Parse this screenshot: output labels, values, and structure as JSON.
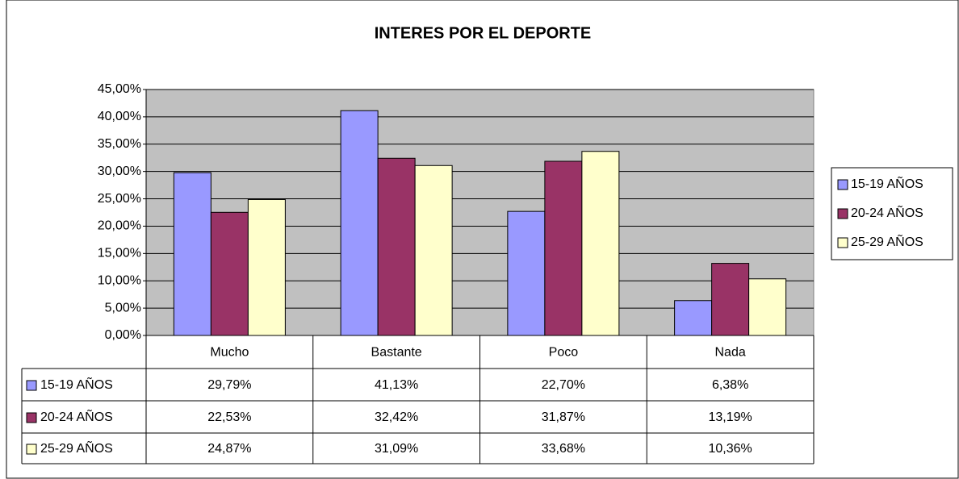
{
  "chart_data": {
    "type": "bar",
    "title": "INTERES POR EL DEPORTE",
    "categories": [
      "Mucho",
      "Bastante",
      "Poco",
      "Nada"
    ],
    "series": [
      {
        "name": "15-19 AÑOS",
        "color": "#9999ff",
        "values": [
          29.79,
          41.13,
          22.7,
          6.38
        ],
        "value_labels": [
          "29,79%",
          "41,13%",
          "22,70%",
          "6,38%"
        ]
      },
      {
        "name": "20-24 AÑOS",
        "color": "#993366",
        "values": [
          22.53,
          32.42,
          31.87,
          13.19
        ],
        "value_labels": [
          "22,53%",
          "32,42%",
          "31,87%",
          "13,19%"
        ]
      },
      {
        "name": "25-29 AÑOS",
        "color": "#ffffcc",
        "values": [
          24.87,
          31.09,
          33.68,
          10.36
        ],
        "value_labels": [
          "24,87%",
          "31,09%",
          "33,68%",
          "10,36%"
        ]
      }
    ],
    "ylim": [
      0,
      45
    ],
    "yticks": [
      {
        "value": 0,
        "label": "0,00%"
      },
      {
        "value": 5,
        "label": "5,00%"
      },
      {
        "value": 10,
        "label": "10,00%"
      },
      {
        "value": 15,
        "label": "15,00%"
      },
      {
        "value": 20,
        "label": "20,00%"
      },
      {
        "value": 25,
        "label": "25,00%"
      },
      {
        "value": 30,
        "label": "30,00%"
      },
      {
        "value": 35,
        "label": "35,00%"
      },
      {
        "value": 40,
        "label": "40,00%"
      },
      {
        "value": 45,
        "label": "45,00%"
      }
    ],
    "grid": true,
    "legend": "right",
    "plot_background": "#c0c0c0"
  }
}
